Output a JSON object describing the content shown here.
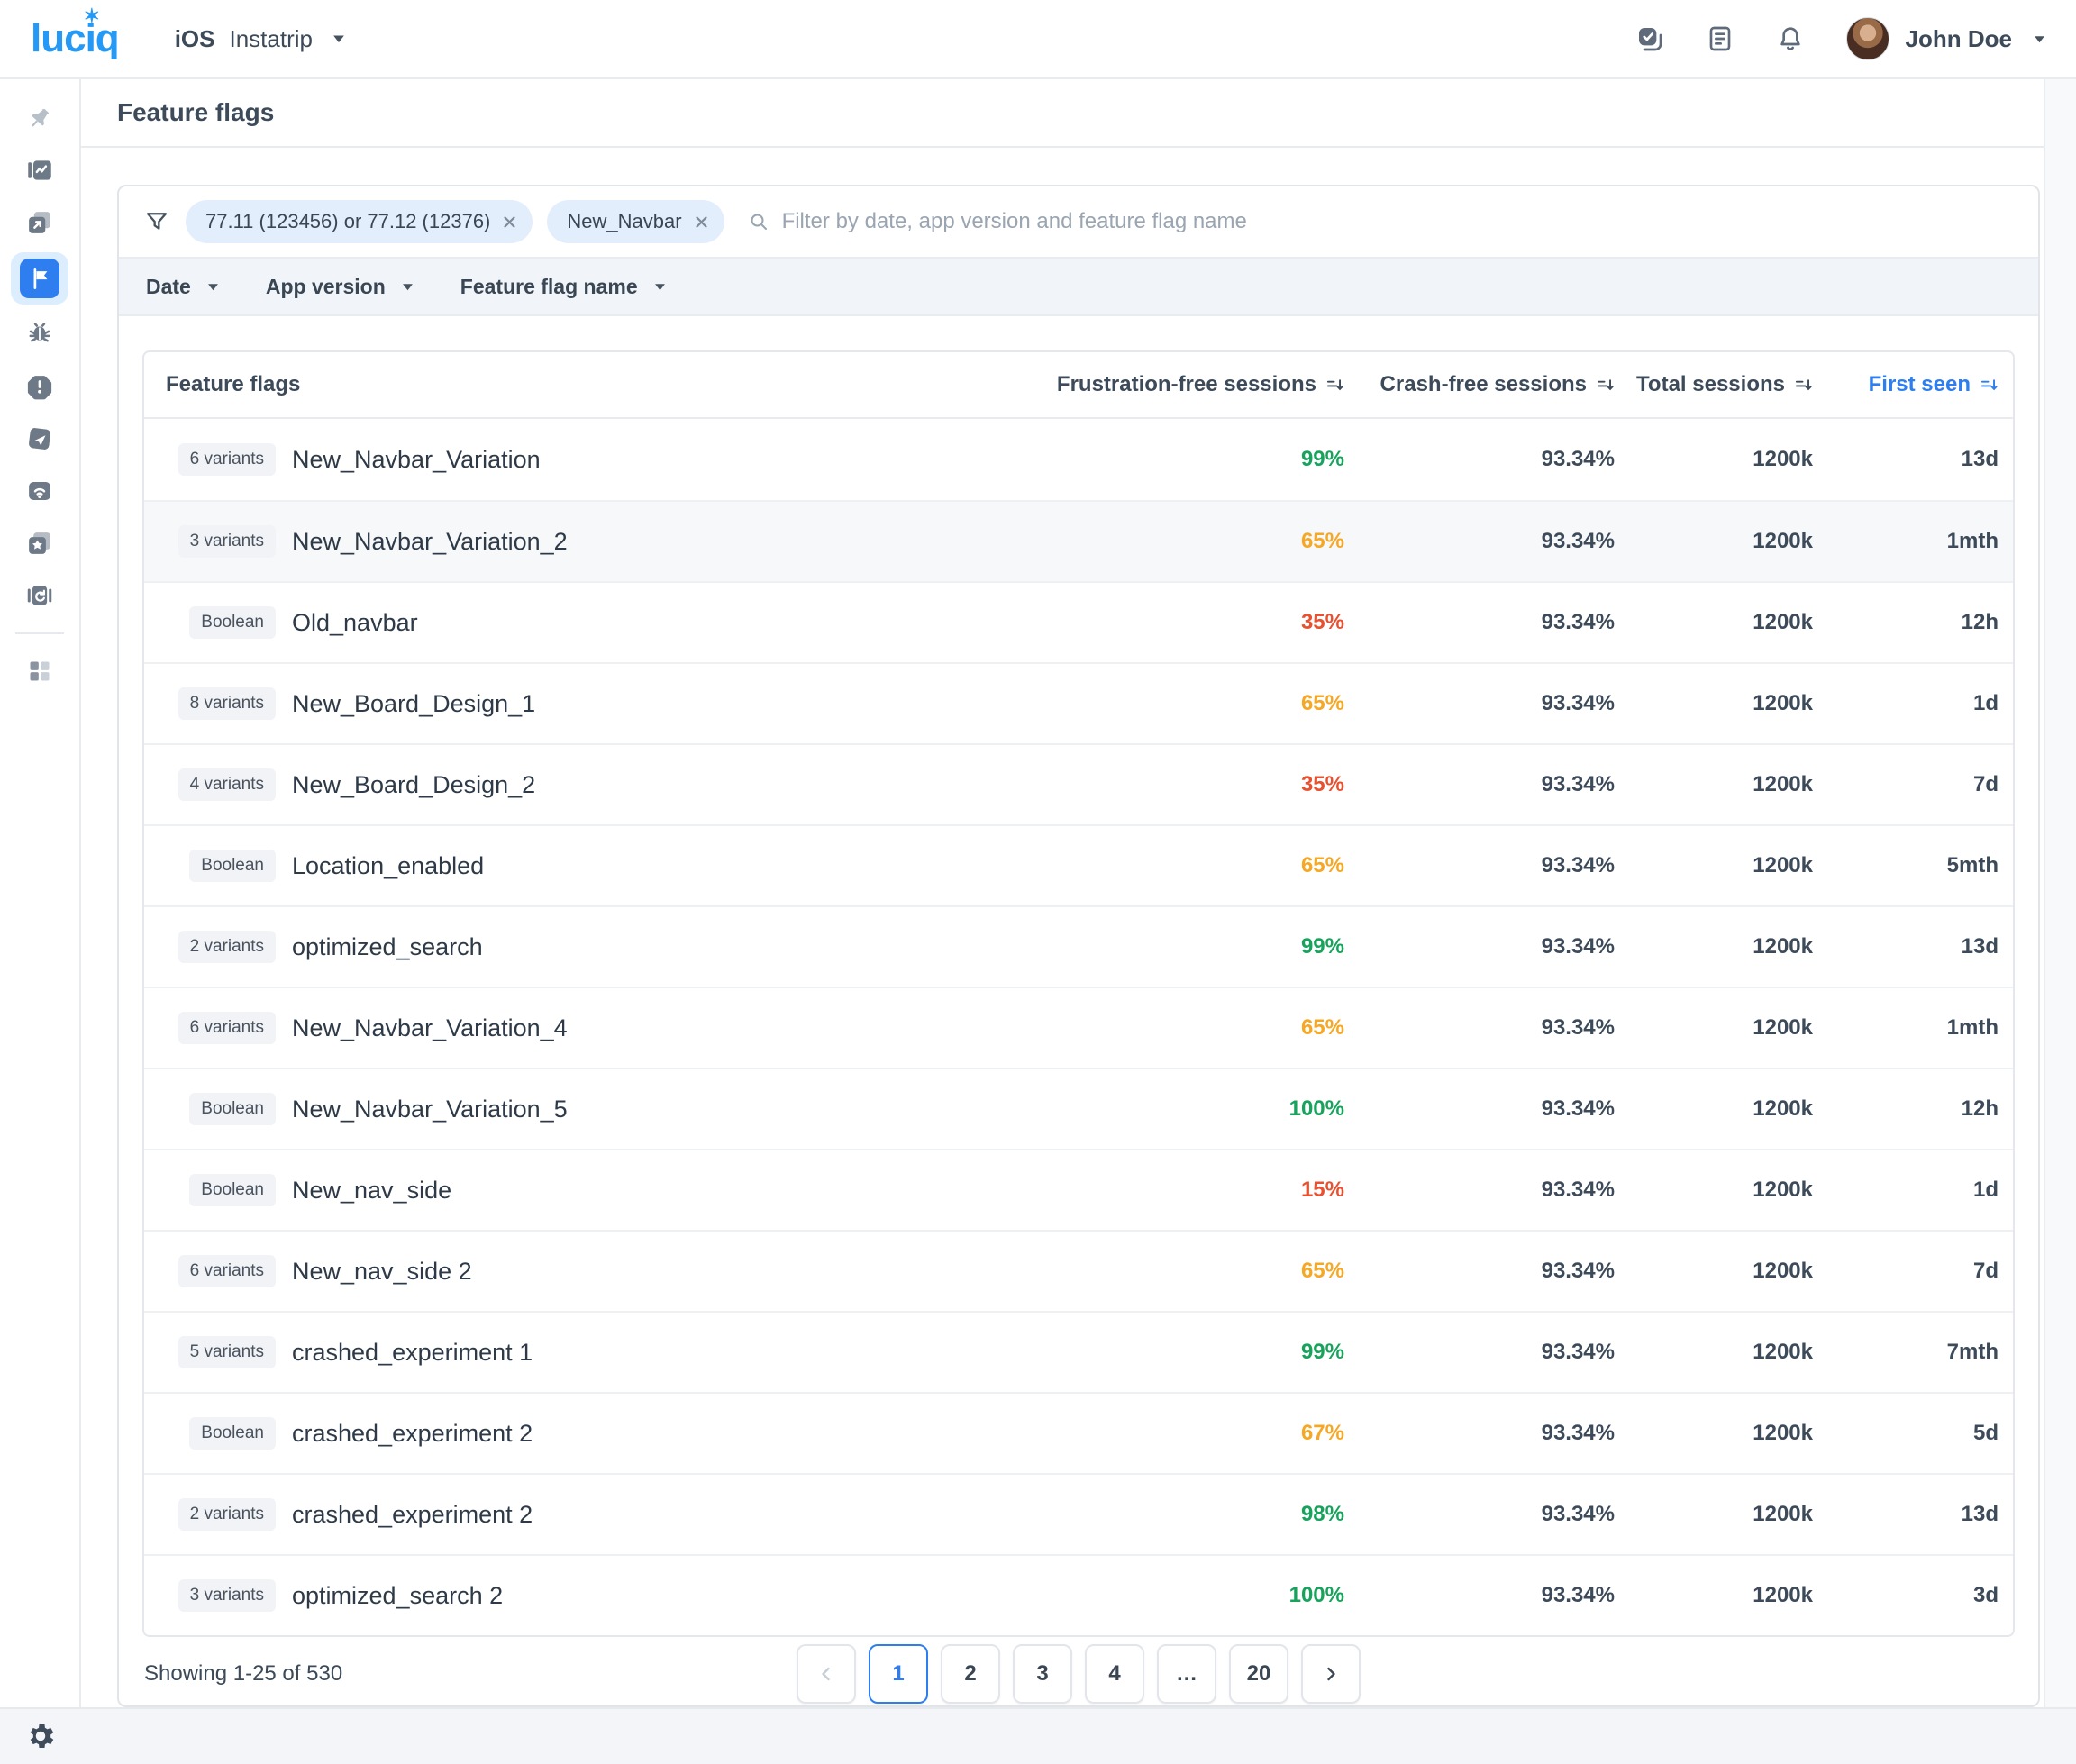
{
  "colors": {
    "blue": "#2e7ef0",
    "green": "#17a35c",
    "orange": "#f6a723",
    "red": "#e8502f",
    "logo": "#2499f5"
  },
  "header": {
    "logo": "luciq",
    "platform": "iOS",
    "app_name": "Instatrip",
    "user_name": "John Doe",
    "actions": [
      {
        "id": "tasks",
        "icon": "tasks"
      },
      {
        "id": "docs",
        "icon": "doc"
      },
      {
        "id": "notifications",
        "icon": "bell"
      }
    ]
  },
  "sidebar": {
    "items": [
      {
        "id": "pin",
        "icon": "pin",
        "muted": true
      },
      {
        "id": "analytics",
        "icon": "analytics"
      },
      {
        "id": "sessions",
        "icon": "sessions"
      },
      {
        "id": "feature-flags",
        "icon": "flag",
        "active": true
      },
      {
        "id": "bug-reports",
        "icon": "bug"
      },
      {
        "id": "crashes",
        "icon": "crash"
      },
      {
        "id": "performance",
        "icon": "performance"
      },
      {
        "id": "network",
        "icon": "network"
      },
      {
        "id": "ratings",
        "icon": "ratings"
      },
      {
        "id": "replays",
        "icon": "replay"
      }
    ],
    "bottom_items": [
      {
        "id": "apps",
        "icon": "apps"
      }
    ]
  },
  "page": {
    "title": "Feature flags"
  },
  "filters": {
    "chips": [
      {
        "label": "77.11 (123456) or 77.12 (12376)"
      },
      {
        "label": "New_Navbar"
      }
    ],
    "search_placeholder": "Filter by date, app version and feature flag name",
    "dropdowns": [
      {
        "label": "Date"
      },
      {
        "label": "App version"
      },
      {
        "label": "Feature flag name"
      }
    ]
  },
  "table": {
    "columns": [
      {
        "label": "Feature flags",
        "sortable": false
      },
      {
        "label": "Frustration-free sessions",
        "sortable": true
      },
      {
        "label": "Crash-free sessions",
        "sortable": true
      },
      {
        "label": "Total sessions",
        "sortable": true
      },
      {
        "label": "First seen",
        "sortable": true,
        "active": true
      }
    ],
    "rows": [
      {
        "badge": "6 variants",
        "name": "New_Navbar_Variation",
        "frustration_free": "99%",
        "level": "good",
        "crash_free": "93.34%",
        "total_sessions": "1200k",
        "first_seen": "13d"
      },
      {
        "badge": "3 variants",
        "name": "New_Navbar_Variation_2",
        "frustration_free": "65%",
        "level": "warn",
        "crash_free": "93.34%",
        "total_sessions": "1200k",
        "first_seen": "1mth",
        "highlighted": true
      },
      {
        "badge": "Boolean",
        "name": "Old_navbar",
        "frustration_free": "35%",
        "level": "bad",
        "crash_free": "93.34%",
        "total_sessions": "1200k",
        "first_seen": "12h"
      },
      {
        "badge": "8 variants",
        "name": "New_Board_Design_1",
        "frustration_free": "65%",
        "level": "warn",
        "crash_free": "93.34%",
        "total_sessions": "1200k",
        "first_seen": "1d"
      },
      {
        "badge": "4 variants",
        "name": "New_Board_Design_2",
        "frustration_free": "35%",
        "level": "bad",
        "crash_free": "93.34%",
        "total_sessions": "1200k",
        "first_seen": "7d"
      },
      {
        "badge": "Boolean",
        "name": "Location_enabled",
        "frustration_free": "65%",
        "level": "warn",
        "crash_free": "93.34%",
        "total_sessions": "1200k",
        "first_seen": "5mth"
      },
      {
        "badge": "2 variants",
        "name": "optimized_search",
        "frustration_free": "99%",
        "level": "good",
        "crash_free": "93.34%",
        "total_sessions": "1200k",
        "first_seen": "13d"
      },
      {
        "badge": "6 variants",
        "name": "New_Navbar_Variation_4",
        "frustration_free": "65%",
        "level": "warn",
        "crash_free": "93.34%",
        "total_sessions": "1200k",
        "first_seen": "1mth"
      },
      {
        "badge": "Boolean",
        "name": "New_Navbar_Variation_5",
        "frustration_free": "100%",
        "level": "good",
        "crash_free": "93.34%",
        "total_sessions": "1200k",
        "first_seen": "12h"
      },
      {
        "badge": "Boolean",
        "name": "New_nav_side",
        "frustration_free": "15%",
        "level": "bad",
        "crash_free": "93.34%",
        "total_sessions": "1200k",
        "first_seen": "1d"
      },
      {
        "badge": "6 variants",
        "name": "New_nav_side 2",
        "frustration_free": "65%",
        "level": "warn",
        "crash_free": "93.34%",
        "total_sessions": "1200k",
        "first_seen": "7d"
      },
      {
        "badge": "5 variants",
        "name": "crashed_experiment 1",
        "frustration_free": "99%",
        "level": "good",
        "crash_free": "93.34%",
        "total_sessions": "1200k",
        "first_seen": "7mth"
      },
      {
        "badge": "Boolean",
        "name": "crashed_experiment 2",
        "frustration_free": "67%",
        "level": "warn",
        "crash_free": "93.34%",
        "total_sessions": "1200k",
        "first_seen": "5d"
      },
      {
        "badge": "2 variants",
        "name": "crashed_experiment 2",
        "frustration_free": "98%",
        "level": "good",
        "crash_free": "93.34%",
        "total_sessions": "1200k",
        "first_seen": "13d"
      },
      {
        "badge": "3 variants",
        "name": "optimized_search 2",
        "frustration_free": "100%",
        "level": "good",
        "crash_free": "93.34%",
        "total_sessions": "1200k",
        "first_seen": "3d"
      }
    ]
  },
  "pagination": {
    "summary": "Showing 1-25 of 530",
    "pages": [
      "1",
      "2",
      "3",
      "4",
      "…",
      "20"
    ],
    "active_page": "1",
    "prev_enabled": false,
    "next_enabled": true
  }
}
